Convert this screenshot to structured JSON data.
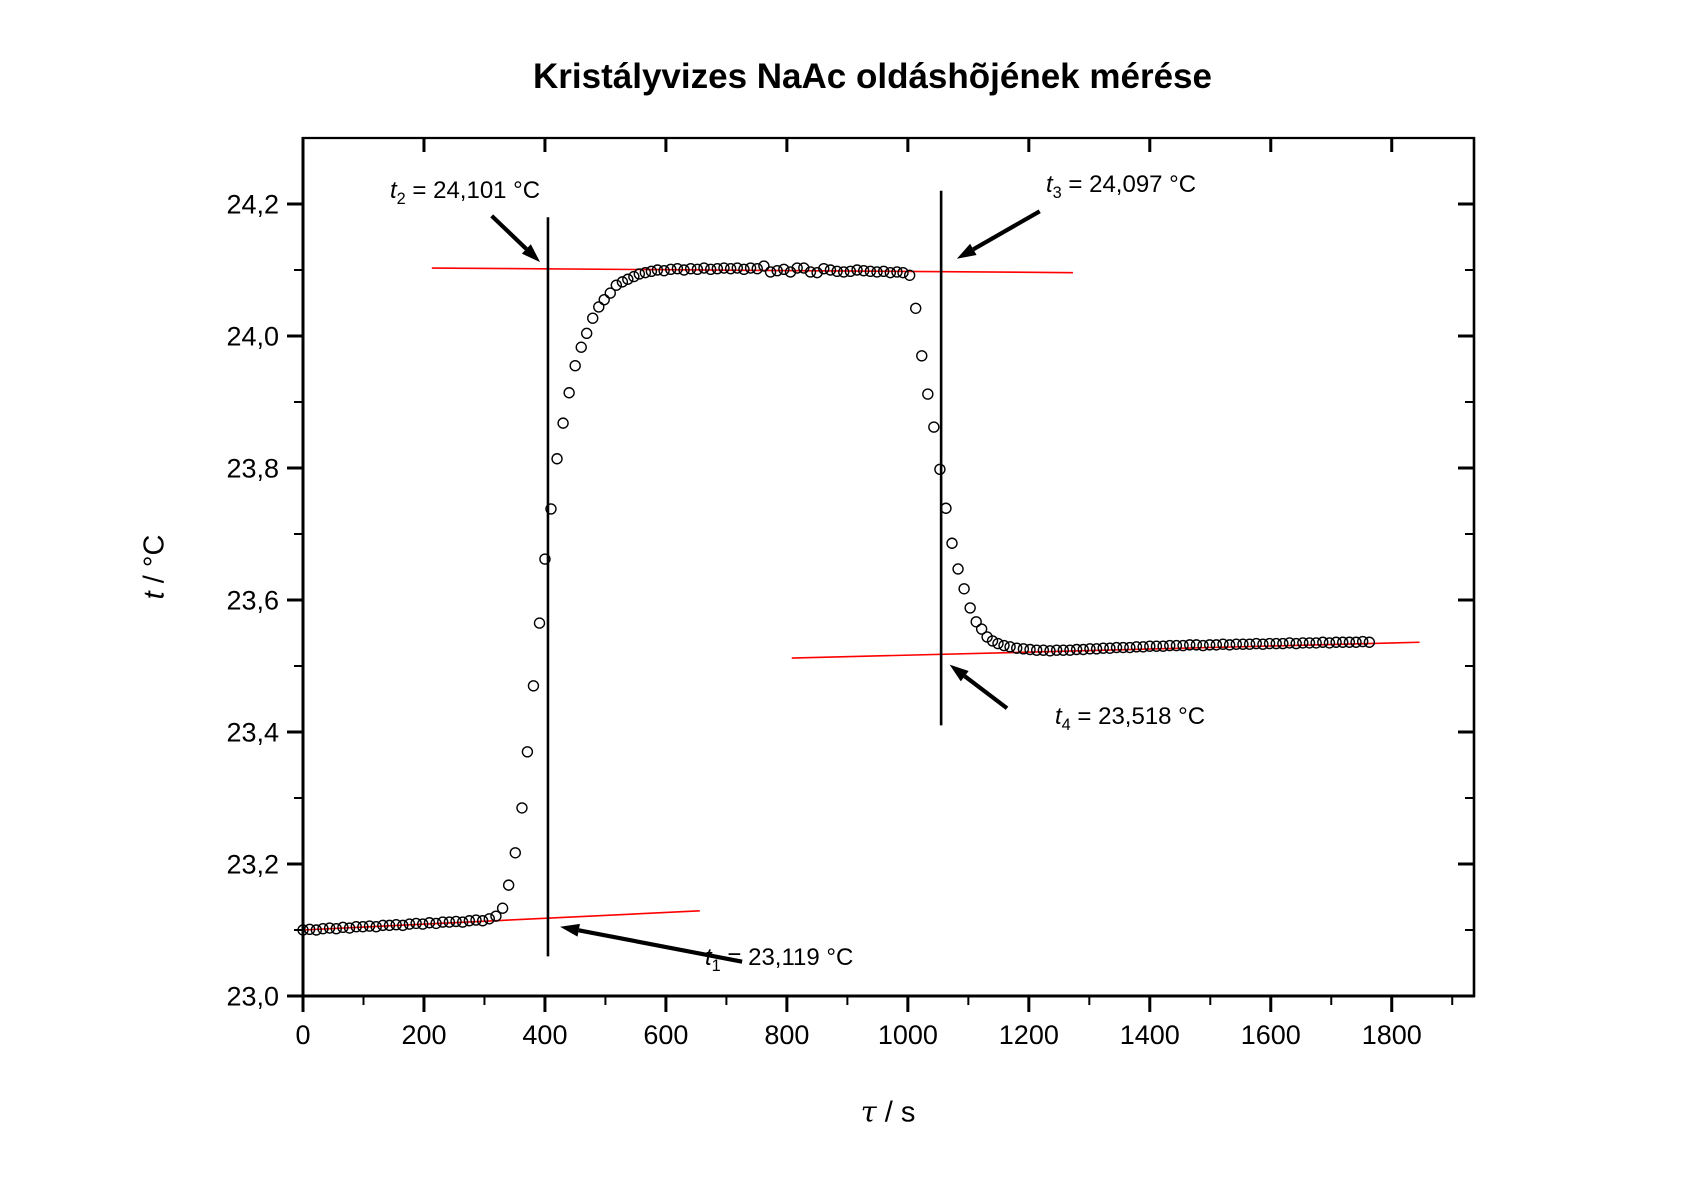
{
  "chart_data": {
    "type": "scatter",
    "title": "Kristályvizes NaAc oldáshõjének mérése",
    "xlabel": {
      "symbol": "τ",
      "rest": " / s"
    },
    "ylabel": {
      "symbol": "t",
      "rest": " / °C"
    },
    "xlim": [
      0,
      1936
    ],
    "ylim": [
      23.0,
      24.3
    ],
    "grid": false,
    "legend": "none",
    "axis_color": "#000000",
    "fit_line_color": "#ff0000",
    "x_major_ticks": [
      0,
      200,
      400,
      600,
      800,
      1000,
      1200,
      1400,
      1600,
      1800
    ],
    "x_major_labels": [
      "0",
      "200",
      "400",
      "600",
      "800",
      "1000",
      "1200",
      "1400",
      "1600",
      "1800"
    ],
    "x_minor_ticks": [
      100,
      300,
      500,
      700,
      900,
      1100,
      1300,
      1500,
      1700,
      1900
    ],
    "y_major_ticks": [
      23.0,
      23.2,
      23.4,
      23.6,
      23.8,
      24.0,
      24.2
    ],
    "y_major_labels": [
      "23,0",
      "23,2",
      "23,4",
      "23,6",
      "23,8",
      "24,0",
      "24,2"
    ],
    "y_minor_ticks": [
      23.1,
      23.3,
      23.5,
      23.7,
      23.9,
      24.1
    ],
    "series": [
      {
        "name": "temperature-measurement",
        "marker": "open-circle",
        "color": "#000000",
        "points": [
          [
            0,
            23.1
          ],
          [
            11,
            23.101
          ],
          [
            22,
            23.1
          ],
          [
            33,
            23.102
          ],
          [
            44,
            23.103
          ],
          [
            55,
            23.102
          ],
          [
            66,
            23.104
          ],
          [
            77,
            23.103
          ],
          [
            88,
            23.105
          ],
          [
            99,
            23.105
          ],
          [
            110,
            23.106
          ],
          [
            121,
            23.105
          ],
          [
            132,
            23.107
          ],
          [
            143,
            23.107
          ],
          [
            154,
            23.108
          ],
          [
            165,
            23.107
          ],
          [
            176,
            23.109
          ],
          [
            187,
            23.11
          ],
          [
            198,
            23.109
          ],
          [
            209,
            23.111
          ],
          [
            220,
            23.11
          ],
          [
            231,
            23.112
          ],
          [
            242,
            23.112
          ],
          [
            253,
            23.113
          ],
          [
            264,
            23.112
          ],
          [
            275,
            23.114
          ],
          [
            286,
            23.115
          ],
          [
            297,
            23.114
          ],
          [
            308,
            23.117
          ],
          [
            319,
            23.121
          ],
          [
            330,
            23.133
          ],
          [
            340,
            23.168
          ],
          [
            351,
            23.217
          ],
          [
            362,
            23.285
          ],
          [
            371,
            23.37
          ],
          [
            381,
            23.47
          ],
          [
            391,
            23.565
          ],
          [
            400,
            23.662
          ],
          [
            410,
            23.738
          ],
          [
            420,
            23.814
          ],
          [
            430,
            23.868
          ],
          [
            440,
            23.914
          ],
          [
            450,
            23.955
          ],
          [
            460,
            23.983
          ],
          [
            469,
            24.004
          ],
          [
            479,
            24.027
          ],
          [
            489,
            24.044
          ],
          [
            498,
            24.055
          ],
          [
            508,
            24.065
          ],
          [
            518,
            24.077
          ],
          [
            528,
            24.082
          ],
          [
            537,
            24.086
          ],
          [
            547,
            24.09
          ],
          [
            556,
            24.094
          ],
          [
            566,
            24.096
          ],
          [
            576,
            24.098
          ],
          [
            586,
            24.1
          ],
          [
            597,
            24.099
          ],
          [
            608,
            24.101
          ],
          [
            619,
            24.102
          ],
          [
            630,
            24.1
          ],
          [
            641,
            24.102
          ],
          [
            652,
            24.101
          ],
          [
            663,
            24.103
          ],
          [
            674,
            24.101
          ],
          [
            685,
            24.102
          ],
          [
            696,
            24.103
          ],
          [
            707,
            24.102
          ],
          [
            718,
            24.103
          ],
          [
            729,
            24.101
          ],
          [
            740,
            24.103
          ],
          [
            751,
            24.102
          ],
          [
            762,
            24.106
          ],
          [
            773,
            24.097
          ],
          [
            784,
            24.099
          ],
          [
            795,
            24.101
          ],
          [
            806,
            24.097
          ],
          [
            817,
            24.103
          ],
          [
            828,
            24.103
          ],
          [
            839,
            24.097
          ],
          [
            850,
            24.096
          ],
          [
            861,
            24.102
          ],
          [
            872,
            24.1
          ],
          [
            883,
            24.098
          ],
          [
            894,
            24.097
          ],
          [
            905,
            24.098
          ],
          [
            916,
            24.1
          ],
          [
            927,
            24.099
          ],
          [
            938,
            24.098
          ],
          [
            949,
            24.097
          ],
          [
            960,
            24.098
          ],
          [
            971,
            24.096
          ],
          [
            982,
            24.097
          ],
          [
            992,
            24.096
          ],
          [
            1003,
            24.092
          ],
          [
            1013,
            24.042
          ],
          [
            1023,
            23.97
          ],
          [
            1033,
            23.912
          ],
          [
            1043,
            23.862
          ],
          [
            1053,
            23.798
          ],
          [
            1063,
            23.739
          ],
          [
            1073,
            23.686
          ],
          [
            1083,
            23.647
          ],
          [
            1093,
            23.617
          ],
          [
            1103,
            23.588
          ],
          [
            1113,
            23.567
          ],
          [
            1122,
            23.556
          ],
          [
            1131,
            23.544
          ],
          [
            1140,
            23.538
          ],
          [
            1149,
            23.534
          ],
          [
            1159,
            23.531
          ],
          [
            1169,
            23.529
          ],
          [
            1180,
            23.527
          ],
          [
            1191,
            23.526
          ],
          [
            1202,
            23.525
          ],
          [
            1213,
            23.524
          ],
          [
            1224,
            23.524
          ],
          [
            1235,
            23.523
          ],
          [
            1246,
            23.524
          ],
          [
            1257,
            23.524
          ],
          [
            1268,
            23.524
          ],
          [
            1279,
            23.525
          ],
          [
            1290,
            23.525
          ],
          [
            1301,
            23.526
          ],
          [
            1312,
            23.526
          ],
          [
            1323,
            23.527
          ],
          [
            1334,
            23.527
          ],
          [
            1345,
            23.528
          ],
          [
            1356,
            23.528
          ],
          [
            1367,
            23.528
          ],
          [
            1378,
            23.529
          ],
          [
            1389,
            23.529
          ],
          [
            1400,
            23.53
          ],
          [
            1411,
            23.53
          ],
          [
            1422,
            23.53
          ],
          [
            1433,
            23.531
          ],
          [
            1444,
            23.531
          ],
          [
            1455,
            23.531
          ],
          [
            1466,
            23.532
          ],
          [
            1477,
            23.532
          ],
          [
            1488,
            23.531
          ],
          [
            1499,
            23.532
          ],
          [
            1510,
            23.532
          ],
          [
            1521,
            23.533
          ],
          [
            1532,
            23.532
          ],
          [
            1543,
            23.533
          ],
          [
            1554,
            23.533
          ],
          [
            1565,
            23.533
          ],
          [
            1576,
            23.534
          ],
          [
            1587,
            23.533
          ],
          [
            1598,
            23.534
          ],
          [
            1609,
            23.534
          ],
          [
            1620,
            23.534
          ],
          [
            1631,
            23.535
          ],
          [
            1642,
            23.534
          ],
          [
            1653,
            23.535
          ],
          [
            1664,
            23.535
          ],
          [
            1675,
            23.535
          ],
          [
            1686,
            23.536
          ],
          [
            1697,
            23.535
          ],
          [
            1708,
            23.536
          ],
          [
            1719,
            23.536
          ],
          [
            1730,
            23.536
          ],
          [
            1741,
            23.536
          ],
          [
            1752,
            23.537
          ],
          [
            1763,
            23.536
          ]
        ]
      }
    ],
    "fit_lines": [
      {
        "name": "fore-period-baseline",
        "color": "#ff0000",
        "from": [
          0,
          23.1
        ],
        "to": [
          656,
          23.129
        ]
      },
      {
        "name": "main-period-plateau",
        "color": "#ff0000",
        "from": [
          213,
          24.103
        ],
        "to": [
          1273,
          24.096
        ]
      },
      {
        "name": "after-period-baseline",
        "color": "#ff0000",
        "from": [
          808,
          23.512
        ],
        "to": [
          1846,
          23.536
        ]
      }
    ],
    "vertical_lines": [
      {
        "name": "extrapolation-line-1",
        "x": 405,
        "t_from": 23.06,
        "t_to": 24.18
      },
      {
        "name": "extrapolation-line-2",
        "x": 1055,
        "t_from": 23.41,
        "t_to": 24.22
      }
    ],
    "annotations": [
      {
        "id": "t1",
        "symbol": "t",
        "subscript": "1",
        "rest": " = 23,119 °C",
        "value_c": 23.119,
        "arrow_from": [
          726,
          23.052
        ],
        "arrow_to": [
          425,
          23.105
        ]
      },
      {
        "id": "t2",
        "symbol": "t",
        "subscript": "2",
        "rest": " = 24,101 °C",
        "value_c": 24.101,
        "arrow_from": [
          312,
          24.182
        ],
        "arrow_to": [
          392,
          24.112
        ]
      },
      {
        "id": "t3",
        "symbol": "t",
        "subscript": "3",
        "rest": " = 24,097 °C",
        "value_c": 24.097,
        "arrow_from": [
          1218,
          24.189
        ],
        "arrow_to": [
          1081,
          24.117
        ]
      },
      {
        "id": "t4",
        "symbol": "t",
        "subscript": "4",
        "rest": " = 23,518 °C",
        "value_c": 23.518,
        "arrow_from": [
          1164,
          23.436
        ],
        "arrow_to": [
          1069,
          23.502
        ]
      }
    ]
  }
}
